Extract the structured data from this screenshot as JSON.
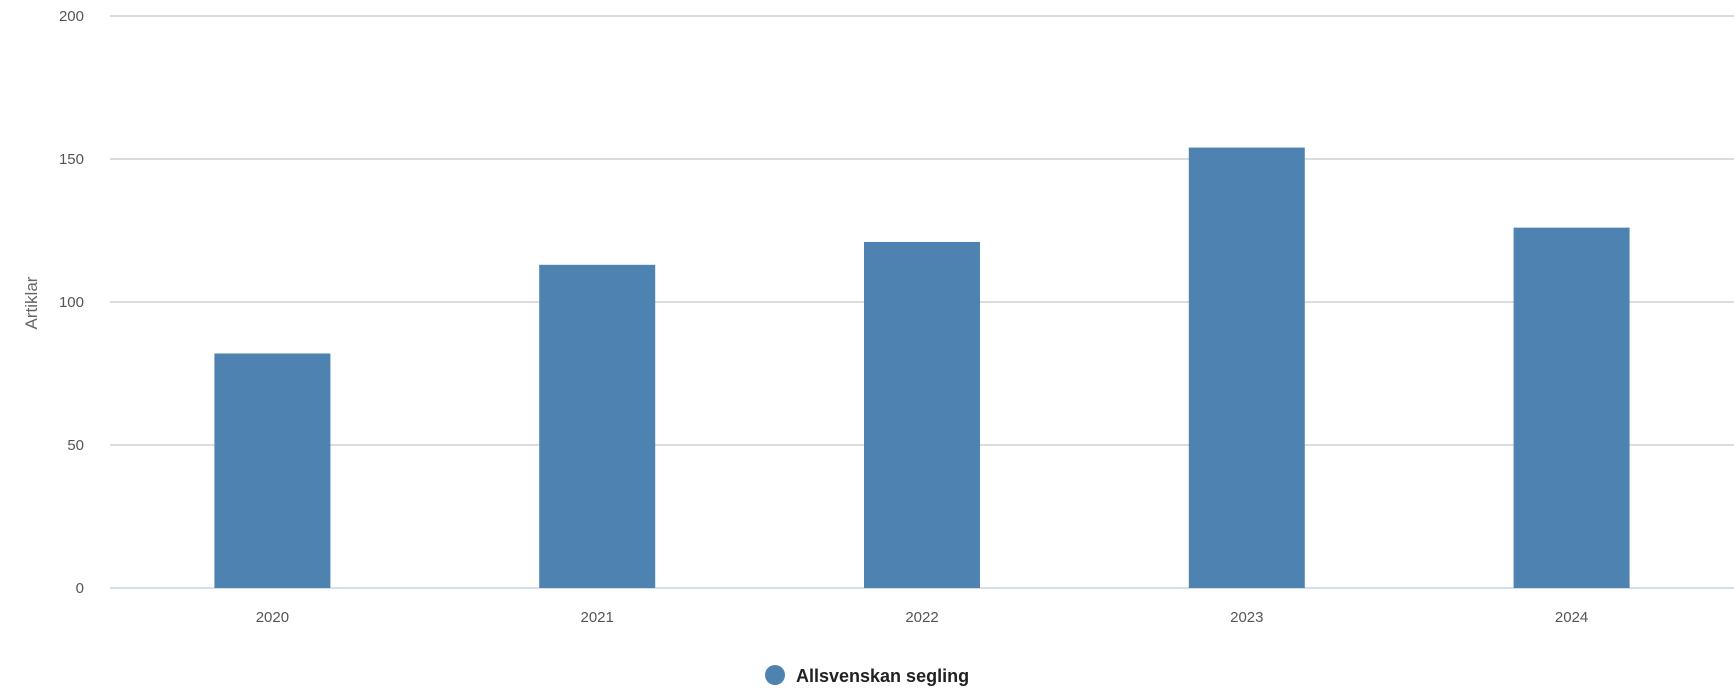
{
  "chart_data": {
    "type": "bar",
    "categories": [
      "2020",
      "2021",
      "2022",
      "2023",
      "2024"
    ],
    "series": [
      {
        "name": "Allsvenskan segling",
        "values": [
          82,
          113,
          121,
          154,
          126
        ],
        "color": "#4e83b1"
      }
    ],
    "title": "",
    "xlabel": "",
    "ylabel": "Artiklar",
    "ylim": [
      0,
      200
    ],
    "yticks": [
      "0",
      "50",
      "100",
      "150",
      "200"
    ],
    "grid": true,
    "legend_position": "bottom-center",
    "colors": {
      "grid": "#d0d0d0",
      "baseline": "#c9d3df"
    }
  }
}
